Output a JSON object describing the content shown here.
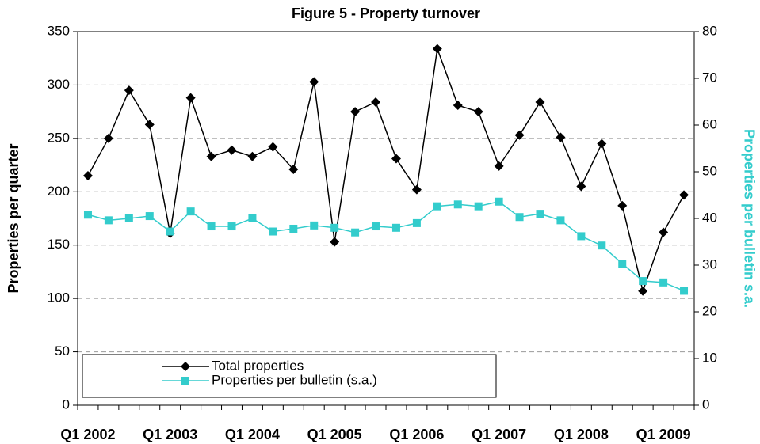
{
  "chart_data": {
    "type": "line",
    "title": "Figure 5 - Property turnover",
    "y_label": "Properties per quarter",
    "y2_label": "Properties per bulletin s.a.",
    "categories": [
      "Q1 2002",
      null,
      null,
      null,
      "Q1 2003",
      null,
      null,
      null,
      "Q1 2004",
      null,
      null,
      null,
      "Q1 2005",
      null,
      null,
      null,
      "Q1 2006",
      null,
      null,
      null,
      "Q1 2007",
      null,
      null,
      null,
      "Q1 2008",
      null,
      null,
      null,
      "Q1 2009",
      null
    ],
    "series": [
      {
        "name": "Total properties",
        "color": "#000000",
        "marker": "diamond",
        "values": [
          215,
          250,
          295,
          263,
          161,
          288,
          233,
          239,
          233,
          242,
          221,
          303,
          153,
          275,
          284,
          231,
          202,
          334,
          281,
          275,
          224,
          253,
          284,
          251,
          205,
          245,
          187,
          107,
          162,
          197
        ]
      },
      {
        "name": "Properties per bulletin (s.a.)",
        "color": "#33cccc",
        "marker": "square",
        "axis": "y2",
        "values": [
          40.8,
          39.6,
          40,
          40.5,
          37.2,
          41.5,
          38.3,
          38.3,
          40,
          37.2,
          37.8,
          38.5,
          38,
          37,
          38.3,
          38,
          39,
          42.6,
          43,
          42.6,
          43.6,
          40.3,
          41,
          39.6,
          36.2,
          34.2,
          30.3,
          26.6,
          26.3,
          24.5
        ]
      }
    ],
    "ylim": [
      0,
      350
    ],
    "yticks": [
      0,
      50,
      100,
      150,
      200,
      250,
      300,
      350
    ],
    "y2lim": [
      0,
      80
    ],
    "y2ticks": [
      0,
      10,
      20,
      30,
      40,
      50,
      60,
      70,
      80
    ],
    "grid": true,
    "legend": "lower left"
  }
}
